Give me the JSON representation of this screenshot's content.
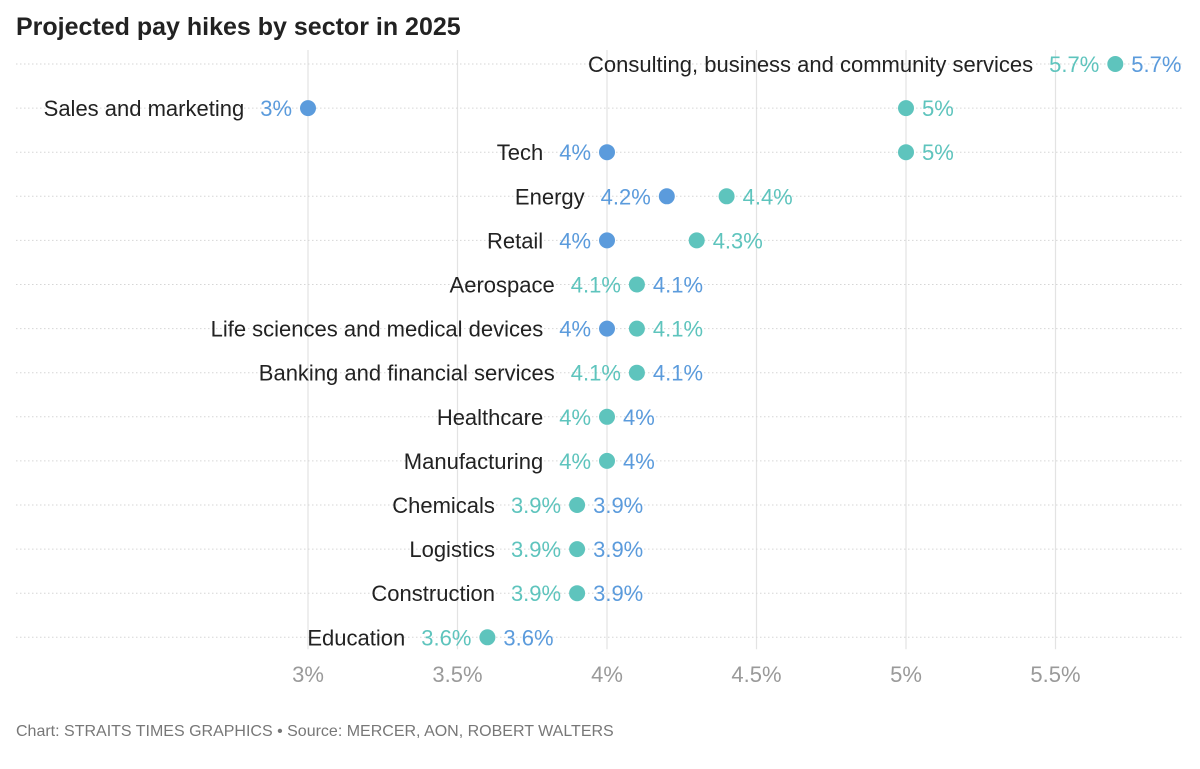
{
  "chart_data": {
    "type": "dumbbell",
    "title": "Projected pay hikes by sector in 2025",
    "footer": "Chart: STRAITS TIMES GRAPHICS • Source: MERCER, AON, ROBERT WALTERS",
    "xlim": [
      3,
      5.8
    ],
    "xticks": [
      3,
      3.5,
      4,
      4.5,
      5,
      5.5
    ],
    "xtick_labels": [
      "3%",
      "3.5%",
      "4%",
      "4.5%",
      "5%",
      "5.5%"
    ],
    "grid": true,
    "colors": {
      "low": "#5b9bdc",
      "high": "#5ec4bd",
      "text": "#222222",
      "grid": "#e3e3e3"
    },
    "categories": [
      "Consulting, business and community services",
      "Sales and marketing",
      "Tech",
      "Energy",
      "Retail",
      "Aerospace",
      "Life sciences and medical devices",
      "Banking and financial services",
      "Healthcare",
      "Manufacturing",
      "Chemicals",
      "Logistics",
      "Construction",
      "Education"
    ],
    "low": [
      5.7,
      3,
      4,
      4.2,
      4,
      4.1,
      4,
      4.1,
      4,
      4,
      3.9,
      3.9,
      3.9,
      3.6
    ],
    "high": [
      5.7,
      5,
      5,
      4.4,
      4.3,
      4.1,
      4.1,
      4.1,
      4,
      4,
      3.9,
      3.9,
      3.9,
      3.6
    ],
    "low_labels": [
      "5.7%",
      "3%",
      "4%",
      "4.2%",
      "4%",
      "4.1%",
      "4%",
      "4.1%",
      "4%",
      "4%",
      "3.9%",
      "3.9%",
      "3.9%",
      "3.6%"
    ],
    "high_labels": [
      "5.7%",
      "5%",
      "5%",
      "4.4%",
      "4.3%",
      "4.1%",
      "4.1%",
      "4.1%",
      "4%",
      "4%",
      "3.9%",
      "3.9%",
      "3.9%",
      "3.6%"
    ]
  }
}
